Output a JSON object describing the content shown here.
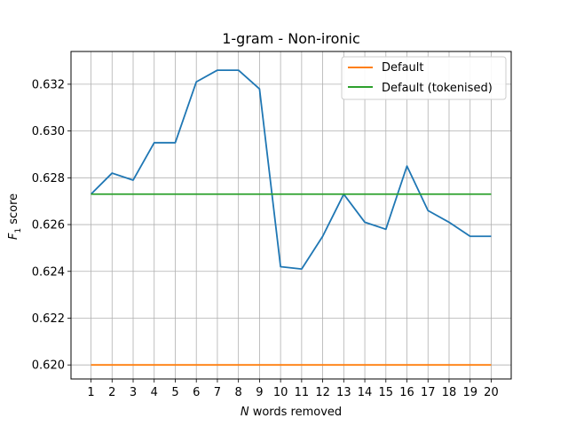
{
  "chart_data": {
    "type": "line",
    "title": "1-gram - Non-ironic",
    "xlabel_prefix": "N",
    "xlabel_rest": " words removed",
    "ylabel_main": "F",
    "ylabel_sub": "1",
    "ylabel_rest": " score",
    "x": [
      1,
      2,
      3,
      4,
      5,
      6,
      7,
      8,
      9,
      10,
      11,
      12,
      13,
      14,
      15,
      16,
      17,
      18,
      19,
      20
    ],
    "xlim": [
      0.05,
      20.95
    ],
    "ylim": [
      0.6194,
      0.6334
    ],
    "yticks": [
      "0.620",
      "0.622",
      "0.624",
      "0.626",
      "0.628",
      "0.630",
      "0.632"
    ],
    "ytick_values": [
      0.62,
      0.622,
      0.624,
      0.626,
      0.628,
      0.63,
      0.632
    ],
    "grid": true,
    "legend_position": "top-right",
    "series": [
      {
        "color": "#1f77b4",
        "values": [
          0.6273,
          0.6282,
          0.6279,
          0.6295,
          0.6295,
          0.6321,
          0.6326,
          0.6326,
          0.6318,
          0.6242,
          0.6241,
          0.6255,
          0.6273,
          0.6261,
          0.6258,
          0.6285,
          0.6266,
          0.6261,
          0.6255,
          0.6255
        ]
      },
      {
        "name": "Default",
        "color": "#ff7f0e",
        "values": [
          0.62,
          0.62,
          0.62,
          0.62,
          0.62,
          0.62,
          0.62,
          0.62,
          0.62,
          0.62,
          0.62,
          0.62,
          0.62,
          0.62,
          0.62,
          0.62,
          0.62,
          0.62,
          0.62,
          0.62
        ]
      },
      {
        "name": "Default (tokenised)",
        "color": "#2ca02c",
        "values": [
          0.6273,
          0.6273,
          0.6273,
          0.6273,
          0.6273,
          0.6273,
          0.6273,
          0.6273,
          0.6273,
          0.6273,
          0.6273,
          0.6273,
          0.6273,
          0.6273,
          0.6273,
          0.6273,
          0.6273,
          0.6273,
          0.6273,
          0.6273
        ]
      }
    ]
  }
}
